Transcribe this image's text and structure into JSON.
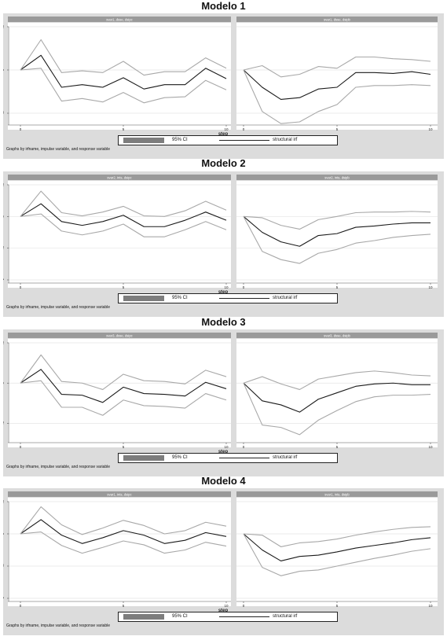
{
  "chart_data": [
    {
      "type": "line",
      "title": "Modelo 1",
      "legend": {
        "ci_label": "95% CI",
        "irf_label": "structural irf"
      },
      "footnote": "Graphs by irfname, impulse variable, and response variable",
      "xlabel": "step",
      "panels": [
        {
          "header": "svar1, dsse, dsipc",
          "ylim": [
            -0.6,
            0.5
          ],
          "y_ticks": [
            ".5",
            "0",
            "-.5"
          ],
          "y_tick_values": [
            0.5,
            0,
            -0.5
          ],
          "x_ticks": [
            "0",
            "5",
            "10"
          ],
          "x_tick_values": [
            0,
            5,
            10
          ],
          "show_step_label": true,
          "x": [
            0,
            1,
            2,
            3,
            4,
            5,
            6,
            7,
            8,
            9,
            10
          ],
          "series": [
            {
              "name": "structural irf",
              "values": [
                0,
                0.17,
                -0.2,
                -0.17,
                -0.2,
                -0.09,
                -0.22,
                -0.17,
                -0.17,
                0.02,
                -0.1
              ]
            },
            {
              "name": "95% CI",
              "role": "upper",
              "values": [
                0,
                0.35,
                -0.03,
                -0.01,
                -0.03,
                0.1,
                -0.06,
                -0.02,
                -0.02,
                0.14,
                0.02
              ]
            },
            {
              "name": "95% CI",
              "role": "lower",
              "values": [
                0,
                0.02,
                -0.36,
                -0.33,
                -0.37,
                -0.26,
                -0.38,
                -0.32,
                -0.31,
                -0.12,
                -0.23
              ]
            }
          ]
        },
        {
          "header": "svar1, dsse, dsipb",
          "ylim": [
            -0.6,
            0.5
          ],
          "y_ticks": [],
          "y_tick_values": [
            0.5,
            0,
            -0.5
          ],
          "x_ticks": [
            "0",
            "5",
            "10"
          ],
          "x_tick_values": [
            0,
            5,
            10
          ],
          "show_step_label": false,
          "x": [
            0,
            1,
            2,
            3,
            4,
            5,
            6,
            7,
            8,
            9,
            10
          ],
          "series": [
            {
              "name": "structural irf",
              "values": [
                0,
                -0.2,
                -0.34,
                -0.32,
                -0.22,
                -0.2,
                -0.03,
                -0.03,
                -0.04,
                -0.02,
                -0.05
              ]
            },
            {
              "name": "95% CI",
              "role": "upper",
              "values": [
                0,
                0.05,
                -0.08,
                -0.05,
                0.04,
                0.02,
                0.15,
                0.15,
                0.13,
                0.12,
                0.1
              ]
            },
            {
              "name": "95% CI",
              "role": "lower",
              "values": [
                0,
                -0.48,
                -0.62,
                -0.6,
                -0.48,
                -0.4,
                -0.2,
                -0.18,
                -0.18,
                -0.17,
                -0.18
              ]
            }
          ]
        }
      ]
    },
    {
      "type": "line",
      "title": "Modelo 2",
      "legend": {
        "ci_label": "95% CI",
        "irf_label": "structural irf"
      },
      "footnote": "Graphs by irfname, impulse variable, and response variable",
      "xlabel": "step",
      "panels": [
        {
          "header": "svar2, ints, dsipc",
          "ylim": [
            -1,
            0.5
          ],
          "y_ticks": [
            ".5",
            "0",
            "-.5",
            "-1"
          ],
          "y_tick_values": [
            0.5,
            0,
            -0.5,
            -1
          ],
          "x_ticks": [
            "0",
            "5",
            "10"
          ],
          "x_tick_values": [
            0,
            5,
            10
          ],
          "show_step_label": true,
          "x": [
            0,
            1,
            2,
            3,
            4,
            5,
            6,
            7,
            8,
            9,
            10
          ],
          "series": [
            {
              "name": "structural irf",
              "values": [
                0,
                0.2,
                -0.08,
                -0.14,
                -0.08,
                0.02,
                -0.16,
                -0.16,
                -0.06,
                0.07,
                -0.06
              ]
            },
            {
              "name": "95% CI",
              "role": "upper",
              "values": [
                0,
                0.4,
                0.06,
                0.01,
                0.07,
                0.16,
                0.01,
                0.0,
                0.09,
                0.24,
                0.1
              ]
            },
            {
              "name": "95% CI",
              "role": "lower",
              "values": [
                0,
                0.04,
                -0.23,
                -0.29,
                -0.23,
                -0.12,
                -0.32,
                -0.32,
                -0.21,
                -0.08,
                -0.21
              ]
            }
          ]
        },
        {
          "header": "svar2, ints, dsipb",
          "ylim": [
            -1,
            0.5
          ],
          "y_ticks": [],
          "y_tick_values": [
            0.5,
            0,
            -0.5,
            -1
          ],
          "x_ticks": [
            "0",
            "5",
            "10"
          ],
          "x_tick_values": [
            0,
            5,
            10
          ],
          "show_step_label": false,
          "x": [
            0,
            1,
            2,
            3,
            4,
            5,
            6,
            7,
            8,
            9,
            10
          ],
          "series": [
            {
              "name": "structural irf",
              "values": [
                0,
                -0.25,
                -0.4,
                -0.47,
                -0.3,
                -0.27,
                -0.17,
                -0.15,
                -0.12,
                -0.1,
                -0.1
              ]
            },
            {
              "name": "95% CI",
              "role": "upper",
              "values": [
                0,
                -0.02,
                -0.14,
                -0.2,
                -0.05,
                0.0,
                0.06,
                0.07,
                0.07,
                0.08,
                0.07
              ]
            },
            {
              "name": "95% CI",
              "role": "lower",
              "values": [
                0,
                -0.55,
                -0.68,
                -0.74,
                -0.58,
                -0.52,
                -0.42,
                -0.38,
                -0.33,
                -0.3,
                -0.28
              ]
            }
          ]
        }
      ]
    },
    {
      "type": "line",
      "title": "Modelo 3",
      "legend": {
        "ci_label": "95% CI",
        "irf_label": "structural irf"
      },
      "footnote": "Graphs by irfname, impulse variable, and response variable",
      "xlabel": "step",
      "panels": [
        {
          "header": "svar3, dsse, dsipc",
          "ylim": [
            -0.7,
            0.5
          ],
          "y_ticks": [
            ".5",
            "0",
            "-.5"
          ],
          "y_tick_values": [
            0.5,
            0,
            -0.5
          ],
          "x_ticks": [
            "0",
            "5",
            "10"
          ],
          "x_tick_values": [
            0,
            5,
            10
          ],
          "show_step_label": true,
          "x": [
            0,
            1,
            2,
            3,
            4,
            5,
            6,
            7,
            8,
            9,
            10
          ],
          "series": [
            {
              "name": "structural irf",
              "values": [
                0,
                0.17,
                -0.14,
                -0.15,
                -0.24,
                -0.05,
                -0.13,
                -0.14,
                -0.16,
                0.01,
                -0.07
              ]
            },
            {
              "name": "95% CI",
              "role": "upper",
              "values": [
                0,
                0.35,
                0.02,
                0.0,
                -0.08,
                0.11,
                0.03,
                0.02,
                -0.01,
                0.16,
                0.08
              ]
            },
            {
              "name": "95% CI",
              "role": "lower",
              "values": [
                0,
                0.03,
                -0.3,
                -0.3,
                -0.4,
                -0.21,
                -0.28,
                -0.29,
                -0.31,
                -0.13,
                -0.21
              ]
            }
          ]
        },
        {
          "header": "svar3, dsse, dsipb",
          "ylim": [
            -0.7,
            0.5
          ],
          "y_ticks": [],
          "y_tick_values": [
            0.5,
            0,
            -0.5
          ],
          "x_ticks": [
            "0",
            "5",
            "10"
          ],
          "x_tick_values": [
            0,
            5,
            10
          ],
          "show_step_label": false,
          "x": [
            0,
            1,
            2,
            3,
            4,
            5,
            6,
            7,
            8,
            9,
            10
          ],
          "series": [
            {
              "name": "structural irf",
              "values": [
                0,
                -0.22,
                -0.27,
                -0.36,
                -0.2,
                -0.12,
                -0.04,
                -0.01,
                0.0,
                -0.02,
                -0.02
              ]
            },
            {
              "name": "95% CI",
              "role": "upper",
              "values": [
                0,
                0.08,
                -0.01,
                -0.08,
                0.05,
                0.09,
                0.13,
                0.15,
                0.13,
                0.1,
                0.09
              ]
            },
            {
              "name": "95% CI",
              "role": "lower",
              "values": [
                0,
                -0.52,
                -0.55,
                -0.64,
                -0.46,
                -0.34,
                -0.23,
                -0.17,
                -0.15,
                -0.15,
                -0.14
              ]
            }
          ]
        }
      ]
    },
    {
      "type": "line",
      "title": "Modelo 4",
      "legend": {
        "ci_label": "95% CI",
        "irf_label": "structural irf"
      },
      "footnote": "Graphs by irfname, impulse variable, and response variable",
      "xlabel": "step",
      "panels": [
        {
          "header": "svar1, ints, dsipc",
          "ylim": [
            -1,
            0.5
          ],
          "y_ticks": [
            ".5",
            "0",
            "-.5",
            "-1"
          ],
          "y_tick_values": [
            0.5,
            0,
            -0.5,
            -1
          ],
          "x_ticks": [
            "0",
            "5",
            "10"
          ],
          "x_tick_values": [
            0,
            5,
            10
          ],
          "show_step_label": true,
          "x": [
            0,
            1,
            2,
            3,
            4,
            5,
            6,
            7,
            8,
            9,
            10
          ],
          "series": [
            {
              "name": "structural irf",
              "values": [
                0,
                0.22,
                -0.02,
                -0.15,
                -0.06,
                0.05,
                -0.02,
                -0.15,
                -0.1,
                0.02,
                -0.04
              ]
            },
            {
              "name": "95% CI",
              "role": "upper",
              "values": [
                0,
                0.42,
                0.14,
                -0.01,
                0.09,
                0.21,
                0.13,
                -0.0,
                0.05,
                0.18,
                0.12
              ]
            },
            {
              "name": "95% CI",
              "role": "lower",
              "values": [
                0,
                0.03,
                -0.18,
                -0.3,
                -0.21,
                -0.11,
                -0.17,
                -0.3,
                -0.25,
                -0.13,
                -0.19
              ]
            }
          ]
        },
        {
          "header": "svar1, ints, dsipb",
          "ylim": [
            -1,
            0.5
          ],
          "y_ticks": [],
          "y_tick_values": [
            0.5,
            0,
            -0.5,
            -1
          ],
          "x_ticks": [
            "0",
            "5",
            "10"
          ],
          "x_tick_values": [
            0,
            5,
            10
          ],
          "show_step_label": false,
          "x": [
            0,
            1,
            2,
            3,
            4,
            5,
            6,
            7,
            8,
            9,
            10
          ],
          "series": [
            {
              "name": "structural irf",
              "values": [
                0,
                -0.25,
                -0.42,
                -0.35,
                -0.33,
                -0.28,
                -0.22,
                -0.18,
                -0.14,
                -0.09,
                -0.06
              ]
            },
            {
              "name": "95% CI",
              "role": "upper",
              "values": [
                0,
                -0.02,
                -0.2,
                -0.14,
                -0.12,
                -0.08,
                -0.02,
                0.03,
                0.07,
                0.1,
                0.11
              ]
            },
            {
              "name": "95% CI",
              "role": "lower",
              "values": [
                0,
                -0.52,
                -0.65,
                -0.58,
                -0.56,
                -0.5,
                -0.44,
                -0.38,
                -0.33,
                -0.27,
                -0.23
              ]
            }
          ]
        }
      ]
    }
  ]
}
